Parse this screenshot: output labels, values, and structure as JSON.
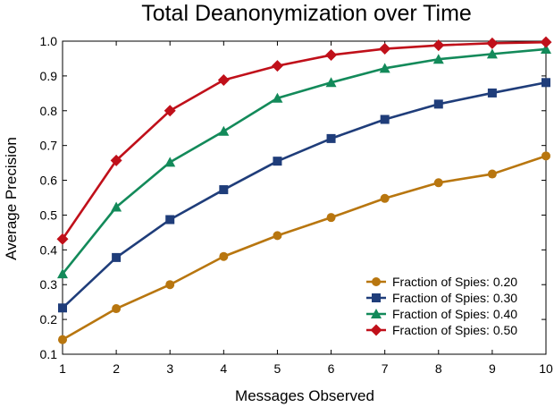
{
  "chart_data": {
    "type": "line",
    "title": "Total Deanonymization over Time",
    "xlabel": "Messages Observed",
    "ylabel": "Average Precision",
    "x": [
      1,
      2,
      3,
      4,
      5,
      6,
      7,
      8,
      9,
      10
    ],
    "xlim": [
      1,
      10
    ],
    "ylim": [
      0.1,
      1.0
    ],
    "x_ticks": [
      "1",
      "2",
      "3",
      "4",
      "5",
      "6",
      "7",
      "8",
      "9",
      "10"
    ],
    "y_ticks": [
      "0.1",
      "0.2",
      "0.3",
      "0.4",
      "0.5",
      "0.6",
      "0.7",
      "0.8",
      "0.9",
      "1.0"
    ],
    "grid": false,
    "legend_position": "bottom-right",
    "series": [
      {
        "name": "Fraction of Spies: 0.20",
        "color": "#b8760f",
        "marker": "circle",
        "values": [
          0.142,
          0.231,
          0.3,
          0.381,
          0.441,
          0.493,
          0.548,
          0.593,
          0.618,
          0.67
        ]
      },
      {
        "name": "Fraction of Spies: 0.30",
        "color": "#1f3d7a",
        "marker": "square",
        "values": [
          0.233,
          0.378,
          0.487,
          0.573,
          0.655,
          0.72,
          0.775,
          0.819,
          0.851,
          0.881
        ]
      },
      {
        "name": "Fraction of Spies: 0.40",
        "color": "#138a5a",
        "marker": "triangle",
        "values": [
          0.331,
          0.523,
          0.652,
          0.741,
          0.836,
          0.881,
          0.922,
          0.948,
          0.963,
          0.977
        ]
      },
      {
        "name": "Fraction of Spies: 0.50",
        "color": "#c0101a",
        "marker": "diamond",
        "values": [
          0.431,
          0.657,
          0.8,
          0.888,
          0.929,
          0.96,
          0.978,
          0.988,
          0.994,
          0.997
        ]
      }
    ]
  }
}
